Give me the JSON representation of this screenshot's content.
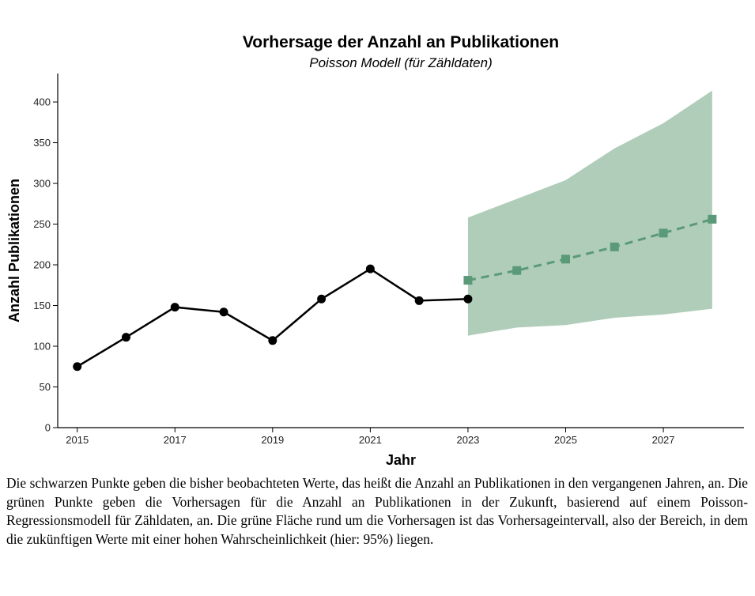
{
  "chart_data": {
    "type": "line",
    "title": "Vorhersage der Anzahl an Publikationen",
    "subtitle": "Poisson Modell (für Zähldaten)",
    "xlabel": "Jahr",
    "ylabel": "Anzahl Publikationen",
    "xlim": [
      2014.6,
      2028.65
    ],
    "ylim": [
      0,
      435
    ],
    "xticks": [
      2015,
      2017,
      2019,
      2021,
      2023,
      2025,
      2027
    ],
    "yticks": [
      0,
      50,
      100,
      150,
      200,
      250,
      300,
      350,
      400
    ],
    "grid": false,
    "colors": {
      "observed": "#000000",
      "forecast": "#5a9a78",
      "interval": "#afcdb9"
    },
    "observed": {
      "x": [
        2015,
        2016,
        2017,
        2018,
        2019,
        2020,
        2021,
        2022,
        2023
      ],
      "y": [
        75,
        111,
        148,
        142,
        107,
        158,
        195,
        156,
        158
      ]
    },
    "forecast": {
      "x": [
        2023,
        2024,
        2025,
        2026,
        2027,
        2028
      ],
      "y": [
        181,
        193,
        207,
        222,
        239,
        256
      ],
      "lower": [
        113,
        123,
        126,
        135,
        139,
        146
      ],
      "upper": [
        258,
        281,
        304,
        343,
        374,
        414
      ],
      "confidence": "95%"
    }
  },
  "caption": "Die schwarzen Punkte geben die bisher beobachteten Werte, das heißt die Anzahl an Publikationen in den vergangenen Jahren, an. Die grünen Punkte geben die Vorhersagen für die Anzahl an Publikationen in der Zukunft, basierend auf einem Poisson-Regressionsmodell für Zähldaten, an. Die grüne Fläche rund um die Vorhersagen ist das Vorhersageintervall, also der Bereich, in dem die zukünftigen Werte mit einer hohen Wahrscheinlichkeit (hier: 95%) liegen."
}
